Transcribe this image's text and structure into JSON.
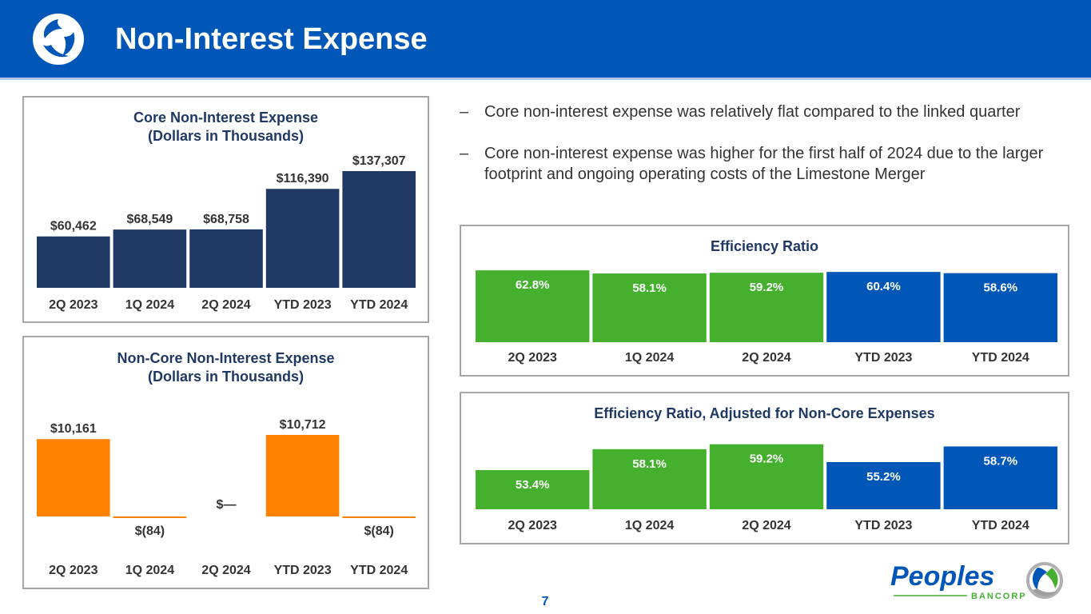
{
  "header": {
    "title": "Non-Interest Expense",
    "logo_icon": "peoples-swirl-logo-icon"
  },
  "bullets": [
    "Core non-interest expense was relatively flat compared to the linked quarter",
    "Core non-interest expense was higher for the first half of 2024 due to the larger footprint and ongoing operating costs of the Limestone Merger"
  ],
  "bullet_marker": "–",
  "page_number": "7",
  "brand": {
    "name": "Peoples",
    "sub": "BANCORP"
  },
  "colors": {
    "header": "#0057b8",
    "navy": "#1f3864",
    "orange": "#ff8200",
    "green": "#44b02e",
    "blue": "#0057b8"
  },
  "chart_data": [
    {
      "id": "core",
      "type": "bar",
      "title": "Core Non-Interest Expense",
      "subtitle": "(Dollars in Thousands)",
      "categories": [
        "2Q 2023",
        "1Q 2024",
        "2Q 2024",
        "YTD 2023",
        "YTD 2024"
      ],
      "values": [
        60462,
        68549,
        68758,
        116390,
        137307
      ],
      "labels": [
        "$60,462",
        "$68,549",
        "$68,758",
        "$116,390",
        "$137,307"
      ],
      "colors": [
        "#1f3864",
        "#1f3864",
        "#1f3864",
        "#1f3864",
        "#1f3864"
      ],
      "ylim": [
        0,
        137307
      ],
      "grid": false
    },
    {
      "id": "noncore",
      "type": "bar",
      "title": "Non-Core Non-Interest Expense",
      "subtitle": "(Dollars in Thousands)",
      "categories": [
        "2Q 2023",
        "1Q 2024",
        "2Q 2024",
        "YTD 2023",
        "YTD 2024"
      ],
      "values": [
        10161,
        -84,
        0,
        10712,
        -84
      ],
      "labels": [
        "$10,161",
        "$(84)",
        "$—",
        "$10,712",
        "$(84)"
      ],
      "colors": [
        "#ff8200",
        "#ff8200",
        "#ff8200",
        "#ff8200",
        "#ff8200"
      ],
      "ylim": [
        -84,
        10712
      ],
      "grid": false
    },
    {
      "id": "eff",
      "type": "bar",
      "title": "Efficiency Ratio",
      "categories": [
        "2Q 2023",
        "1Q 2024",
        "2Q 2024",
        "YTD 2023",
        "YTD 2024"
      ],
      "values": [
        62.8,
        58.1,
        59.2,
        60.4,
        58.6
      ],
      "labels": [
        "62.8%",
        "58.1%",
        "59.2%",
        "60.4%",
        "58.6%"
      ],
      "colors": [
        "#44b02e",
        "#44b02e",
        "#44b02e",
        "#0057b8",
        "#0057b8"
      ],
      "ylim": [
        40,
        63
      ],
      "grid": false
    },
    {
      "id": "adj",
      "type": "bar",
      "title": "Efficiency Ratio, Adjusted for Non-Core Expenses",
      "categories": [
        "2Q 2023",
        "1Q 2024",
        "2Q 2024",
        "YTD 2023",
        "YTD 2024"
      ],
      "values": [
        53.4,
        58.1,
        59.2,
        55.2,
        58.7
      ],
      "labels": [
        "53.4%",
        "58.1%",
        "59.2%",
        "55.2%",
        "58.7%"
      ],
      "colors": [
        "#44b02e",
        "#44b02e",
        "#44b02e",
        "#0057b8",
        "#0057b8"
      ],
      "ylim": [
        50,
        59.5
      ],
      "grid": false
    }
  ]
}
